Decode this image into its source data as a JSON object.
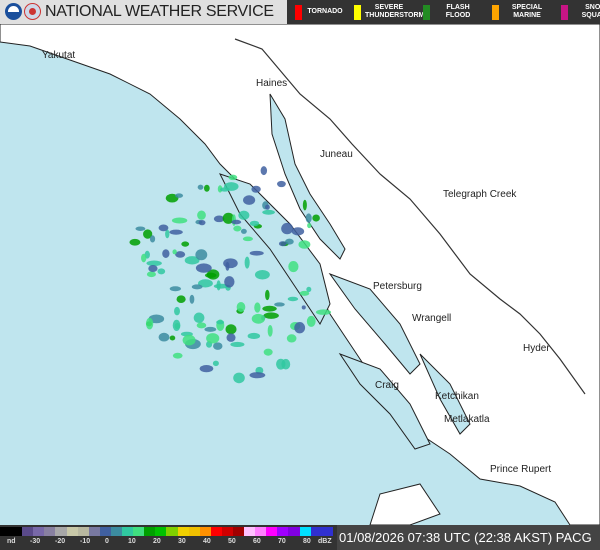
{
  "header": {
    "title": "NATIONAL WEATHER SERVICE",
    "logos": [
      "noaa-logo",
      "nws-logo"
    ]
  },
  "warnings_legend": [
    {
      "label": "TORNADO",
      "color": "#ff0000"
    },
    {
      "label": "SEVERE THUNDERSTORM",
      "color": "#ffff00"
    },
    {
      "label": "FLASH FLOOD",
      "color": "#228b22"
    },
    {
      "label": "SPECIAL MARINE",
      "color": "#ffa500"
    },
    {
      "label": "SNOW SQUALL",
      "color": "#c71585"
    }
  ],
  "map": {
    "cities": [
      "Yakutat",
      "Haines",
      "Juneau",
      "Telegraph Creek",
      "Petersburg",
      "Wrangell",
      "Hyder",
      "Craig",
      "Ketchikan",
      "Metlakatla",
      "Prince Rupert"
    ],
    "colors": {
      "water": "#bfe5ee",
      "land": "#ffffff"
    }
  },
  "colorbar": {
    "ticks": [
      "nd",
      "-30",
      "-20",
      "-10",
      "0",
      "10",
      "20",
      "30",
      "40",
      "50",
      "60",
      "70",
      "80",
      "dBZ"
    ],
    "colors": [
      "#000000",
      "#000000",
      "#5a4a8a",
      "#7868a8",
      "#8880a0",
      "#a8a8a8",
      "#c8c8a8",
      "#b8b8a0",
      "#7878a0",
      "#4060a0",
      "#3c8ca0",
      "#30c8a0",
      "#40e080",
      "#00a000",
      "#00c000",
      "#80d000",
      "#f0d000",
      "#f0c000",
      "#ff9000",
      "#ff0000",
      "#d00000",
      "#a00000",
      "#ffc0ff",
      "#ff80ff",
      "#ff00ff",
      "#a000ff",
      "#8000e0",
      "#00e0ff",
      "#3030d0",
      "#3030d0"
    ]
  },
  "timestamp": "01/08/2026 07:38 UTC (22:38 AKST) PACG"
}
